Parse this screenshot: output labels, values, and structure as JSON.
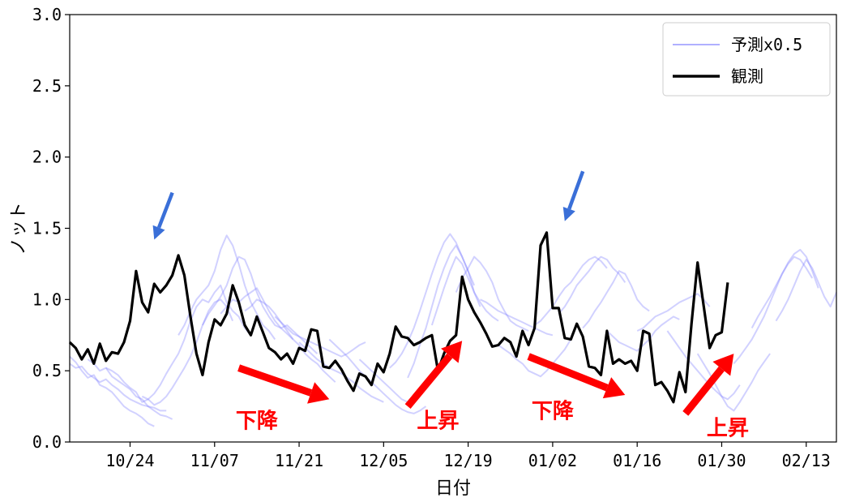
{
  "chart_data": {
    "type": "line",
    "title": "",
    "xlabel": "日付",
    "ylabel": "ノット",
    "ylim": [
      0.0,
      3.0
    ],
    "yticks": [
      "0.0",
      "0.5",
      "1.0",
      "1.5",
      "2.0",
      "2.5",
      "3.0"
    ],
    "xlim": [
      "10/14",
      "02/18"
    ],
    "xticks": [
      "10/24",
      "11/07",
      "11/21",
      "12/05",
      "12/19",
      "01/02",
      "01/16",
      "01/30",
      "02/13"
    ],
    "grid": false,
    "legend_position": "top-right",
    "legend": [
      {
        "label": "予測x0.5",
        "color": "#7b7bff",
        "style": "thin-translucent"
      },
      {
        "label": "観測",
        "color": "#000000",
        "style": "thick"
      }
    ],
    "series": [
      {
        "name": "観測",
        "color": "#000000",
        "x_start": "10/14",
        "step_days": 1,
        "values": [
          0.7,
          0.66,
          0.58,
          0.65,
          0.55,
          0.69,
          0.57,
          0.63,
          0.62,
          0.7,
          0.85,
          1.2,
          0.98,
          0.91,
          1.11,
          1.05,
          1.1,
          1.17,
          1.31,
          1.17,
          0.88,
          0.62,
          0.47,
          0.7,
          0.86,
          0.82,
          0.9,
          1.1,
          0.98,
          0.82,
          0.75,
          0.88,
          0.77,
          0.66,
          0.63,
          0.58,
          0.62,
          0.55,
          0.66,
          0.64,
          0.79,
          0.78,
          0.53,
          0.52,
          0.57,
          0.51,
          0.43,
          0.36,
          0.48,
          0.46,
          0.4,
          0.55,
          0.49,
          0.62,
          0.81,
          0.74,
          0.73,
          0.68,
          0.7,
          0.73,
          0.75,
          0.5,
          0.62,
          0.71,
          0.75,
          1.16,
          1.0,
          0.91,
          0.84,
          0.76,
          0.67,
          0.68,
          0.73,
          0.7,
          0.6,
          0.78,
          0.68,
          0.8,
          1.38,
          1.47,
          0.94,
          0.94,
          0.73,
          0.72,
          0.83,
          0.74,
          0.53,
          0.52,
          0.47,
          0.78,
          0.55,
          0.58,
          0.55,
          0.57,
          0.5,
          0.78,
          0.76,
          0.4,
          0.42,
          0.36,
          0.28,
          0.49,
          0.35,
          0.83,
          1.26,
          0.96,
          0.66,
          0.75,
          0.77,
          1.12
        ]
      },
      {
        "name": "",
        "color": "#7b7bff",
        "x_start": "10/14",
        "values": [
          0.6,
          0.56,
          0.5,
          0.45,
          0.47,
          0.4,
          0.38,
          0.35,
          0.3,
          0.25,
          0.22,
          0.2,
          0.17,
          0.13,
          0.11
        ]
      },
      {
        "name": "",
        "color": "#7b7bff",
        "x_start": "10/14",
        "values": [
          0.55,
          0.52,
          0.53,
          0.48,
          0.45,
          0.42,
          0.44,
          0.4,
          0.37,
          0.33,
          0.3,
          0.28,
          0.26,
          0.25,
          0.24,
          0.22,
          0.22
        ]
      },
      {
        "name": "",
        "color": "#7b7bff",
        "x_start": "10/17",
        "values": [
          0.58,
          0.55,
          0.5,
          0.52,
          0.46,
          0.43,
          0.4,
          0.37,
          0.32,
          0.3,
          0.25,
          0.22,
          0.19,
          0.18,
          0.16
        ]
      },
      {
        "name": "",
        "color": "#7b7bff",
        "x_start": "10/20",
        "values": [
          0.52,
          0.5,
          0.47,
          0.42,
          0.38,
          0.35,
          0.28,
          0.3,
          0.26,
          0.28,
          0.32,
          0.38,
          0.45,
          0.52,
          0.6,
          0.7,
          0.82,
          0.92,
          0.98,
          1.0,
          0.95,
          0.85
        ]
      },
      {
        "name": "",
        "color": "#7b7bff",
        "x_start": "10/26",
        "values": [
          0.32,
          0.3,
          0.34,
          0.4,
          0.48,
          0.55,
          0.62,
          0.72,
          0.85,
          0.95,
          1.0,
          0.98,
          1.05,
          1.1,
          0.98,
          0.92,
          0.88,
          0.8,
          0.75
        ]
      },
      {
        "name": "",
        "color": "#7b7bff",
        "x_start": "11/01",
        "values": [
          0.75,
          0.82,
          0.92,
          1.0,
          1.05,
          1.1,
          1.2,
          1.35,
          1.45,
          1.38,
          1.25,
          1.1,
          0.98,
          0.9,
          0.82,
          0.78,
          0.72
        ]
      },
      {
        "name": "",
        "color": "#7b7bff",
        "x_start": "11/05",
        "values": [
          0.82,
          0.9,
          0.96,
          1.02,
          1.1,
          1.22,
          1.3,
          1.28,
          1.18,
          1.05,
          0.95,
          0.88,
          0.82,
          0.8,
          0.76,
          0.72
        ]
      },
      {
        "name": "",
        "color": "#7b7bff",
        "x_start": "11/08",
        "values": [
          0.9,
          0.95,
          1.0,
          0.98,
          1.02,
          1.05,
          1.08,
          1.0,
          0.92,
          0.85,
          0.8,
          0.82,
          0.78,
          0.74,
          0.7,
          0.66,
          0.62
        ]
      },
      {
        "name": "",
        "color": "#7b7bff",
        "x_start": "11/12",
        "values": [
          0.92,
          0.95,
          1.0,
          0.98,
          0.95,
          0.9,
          0.84,
          0.78,
          0.72,
          0.68,
          0.62,
          0.58,
          0.55,
          0.5,
          0.46,
          0.42
        ]
      },
      {
        "name": "",
        "color": "#7b7bff",
        "x_start": "11/17",
        "values": [
          0.88,
          0.84,
          0.8,
          0.76,
          0.74,
          0.72,
          0.7,
          0.68,
          0.66,
          0.64,
          0.62,
          0.6,
          0.62,
          0.65,
          0.68,
          0.7
        ]
      },
      {
        "name": "",
        "color": "#7b7bff",
        "x_start": "11/21",
        "values": [
          0.7,
          0.66,
          0.62,
          0.58,
          0.55,
          0.52,
          0.5,
          0.48,
          0.45,
          0.42,
          0.38,
          0.35,
          0.32,
          0.3,
          0.28
        ]
      },
      {
        "name": "",
        "color": "#7b7bff",
        "x_start": "11/26",
        "values": [
          0.72,
          0.68,
          0.64,
          0.6,
          0.55,
          0.5,
          0.46,
          0.42,
          0.38,
          0.34,
          0.3,
          0.26,
          0.23,
          0.21,
          0.2,
          0.22,
          0.25
        ]
      },
      {
        "name": "",
        "color": "#7b7bff",
        "x_start": "12/01",
        "values": [
          0.58,
          0.54,
          0.5,
          0.46,
          0.42,
          0.38,
          0.34,
          0.3,
          0.28,
          0.3,
          0.35,
          0.4,
          0.46,
          0.52
        ]
      },
      {
        "name": "",
        "color": "#7b7bff",
        "x_start": "12/06",
        "values": [
          0.52,
          0.56,
          0.62,
          0.7,
          0.8,
          0.92,
          1.05,
          1.18,
          1.3,
          1.4,
          1.46,
          1.4,
          1.3,
          1.2,
          1.1
        ]
      },
      {
        "name": "",
        "color": "#7b7bff",
        "x_start": "12/09",
        "values": [
          0.45,
          0.55,
          0.68,
          0.8,
          0.95,
          1.1,
          1.22,
          1.32,
          1.38,
          1.3,
          1.2,
          1.05,
          0.95
        ]
      },
      {
        "name": "",
        "color": "#7b7bff",
        "x_start": "12/13",
        "values": [
          0.82,
          0.95,
          1.08,
          1.2,
          1.3,
          1.25,
          1.15,
          1.05,
          0.98,
          0.92,
          0.88,
          0.85
        ]
      },
      {
        "name": "",
        "color": "#7b7bff",
        "x_start": "12/17",
        "values": [
          1.05,
          1.15,
          1.22,
          1.3,
          1.26,
          1.2,
          1.12,
          1.0,
          0.92,
          0.85,
          0.82,
          0.8,
          0.78
        ]
      },
      {
        "name": "",
        "color": "#7b7bff",
        "x_start": "12/21",
        "values": [
          1.0,
          0.98,
          0.95,
          0.92,
          0.9,
          0.88,
          0.86,
          0.84,
          0.82,
          0.8,
          0.78,
          0.76,
          0.75
        ]
      },
      {
        "name": "",
        "color": "#7b7bff",
        "x_start": "12/24",
        "values": [
          0.68,
          0.65,
          0.62,
          0.58,
          0.55,
          0.5,
          0.48,
          0.46,
          0.5,
          0.55,
          0.6,
          0.65,
          0.72
        ]
      },
      {
        "name": "",
        "color": "#7b7bff",
        "x_start": "12/30",
        "values": [
          0.82,
          0.85,
          0.9,
          0.95,
          1.02,
          1.08,
          1.12,
          1.18,
          1.24,
          1.28,
          1.3,
          1.27,
          1.22
        ]
      },
      {
        "name": "",
        "color": "#7b7bff",
        "x_start": "01/03",
        "values": [
          0.9,
          0.95,
          1.02,
          1.1,
          1.15,
          1.2,
          1.26,
          1.3,
          1.28,
          1.22,
          1.18,
          1.12
        ]
      },
      {
        "name": "",
        "color": "#7b7bff",
        "x_start": "01/07",
        "values": [
          0.8,
          0.85,
          0.92,
          0.98,
          1.05,
          1.12,
          1.2,
          1.18,
          1.1,
          1.0,
          0.95,
          0.92
        ]
      },
      {
        "name": "",
        "color": "#7b7bff",
        "x_start": "01/11",
        "values": [
          0.78,
          0.74,
          0.7,
          0.68,
          0.66,
          0.64,
          0.68,
          0.72,
          0.78,
          0.82,
          0.85,
          0.88,
          0.86
        ]
      },
      {
        "name": "",
        "color": "#7b7bff",
        "x_start": "01/16",
        "values": [
          0.78,
          0.8,
          0.84,
          0.88,
          0.9,
          0.92,
          0.95,
          0.98,
          1.0,
          1.02,
          1.04,
          1.0,
          0.95
        ]
      },
      {
        "name": "",
        "color": "#7b7bff",
        "x_start": "01/21",
        "values": [
          0.78,
          0.72,
          0.66,
          0.6,
          0.55,
          0.5,
          0.45,
          0.4,
          0.36,
          0.32,
          0.3,
          0.34,
          0.4
        ]
      },
      {
        "name": "",
        "color": "#7b7bff",
        "x_start": "01/26",
        "values": [
          0.62,
          0.55,
          0.48,
          0.4,
          0.32,
          0.25,
          0.22,
          0.28,
          0.35,
          0.42,
          0.5,
          0.56,
          0.62
        ]
      },
      {
        "name": "",
        "color": "#7b7bff",
        "x_start": "02/01",
        "values": [
          0.55,
          0.6,
          0.66,
          0.72,
          0.8,
          0.88,
          0.98,
          1.08,
          1.18,
          1.25,
          1.3,
          1.28,
          1.22,
          1.15
        ]
      },
      {
        "name": "",
        "color": "#7b7bff",
        "x_start": "02/04",
        "values": [
          0.8,
          0.88,
          0.95,
          1.02,
          1.1,
          1.18,
          1.26,
          1.32,
          1.35,
          1.3,
          1.2,
          1.08
        ]
      },
      {
        "name": "",
        "color": "#7b7bff",
        "x_start": "02/08",
        "values": [
          0.85,
          0.92,
          1.0,
          1.1,
          1.2,
          1.28,
          1.22,
          1.12,
          1.02,
          0.95,
          1.05
        ]
      }
    ],
    "annotations": [
      {
        "kind": "arrow",
        "color": "#3a6fd8",
        "from": [
          "10/31",
          1.75
        ],
        "to": [
          "10/28",
          1.42
        ]
      },
      {
        "kind": "arrow",
        "color": "#3a6fd8",
        "from": [
          "01/07",
          1.9
        ],
        "to": [
          "01/04",
          1.55
        ]
      },
      {
        "kind": "arrow",
        "color": "#ff0000",
        "from": [
          "11/11",
          0.52
        ],
        "to": [
          "11/26",
          0.3
        ]
      },
      {
        "kind": "arrow",
        "color": "#ff0000",
        "from": [
          "12/09",
          0.25
        ],
        "to": [
          "12/18",
          0.71
        ]
      },
      {
        "kind": "arrow",
        "color": "#ff0000",
        "from": [
          "12/29",
          0.6
        ],
        "to": [
          "01/14",
          0.33
        ]
      },
      {
        "kind": "arrow",
        "color": "#ff0000",
        "from": [
          "01/24",
          0.2
        ],
        "to": [
          "02/01",
          0.62
        ]
      },
      {
        "kind": "text",
        "color": "#ff0000",
        "text": "下降",
        "at": [
          "11/14",
          0.15
        ]
      },
      {
        "kind": "text",
        "color": "#ff0000",
        "text": "上昇",
        "at": [
          "12/14",
          0.15
        ]
      },
      {
        "kind": "text",
        "color": "#ff0000",
        "text": "下降",
        "at": [
          "01/02",
          0.22
        ]
      },
      {
        "kind": "text",
        "color": "#ff0000",
        "text": "上昇",
        "at": [
          "01/31",
          0.1
        ]
      }
    ]
  }
}
